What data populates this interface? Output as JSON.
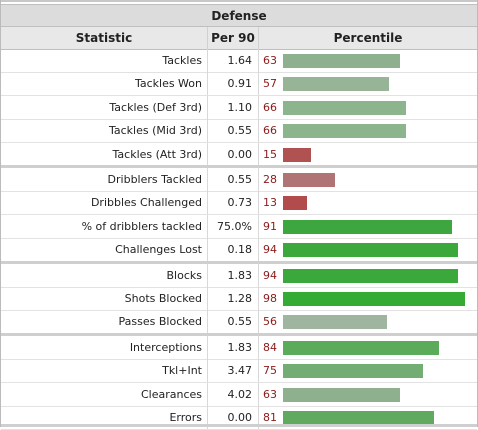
{
  "table": {
    "title": "Defense",
    "headers": {
      "statistic": "Statistic",
      "per90": "Per 90",
      "percentile": "Percentile"
    },
    "groups": [
      [
        {
          "label": "Tackles",
          "per90": "1.64",
          "percentile": "63",
          "pct_value": 63,
          "color": "#8fb08f"
        },
        {
          "label": "Tackles Won",
          "per90": "0.91",
          "percentile": "57",
          "pct_value": 57,
          "color": "#97b497"
        },
        {
          "label": "Tackles (Def 3rd)",
          "per90": "1.10",
          "percentile": "66",
          "pct_value": 66,
          "color": "#8db58d"
        },
        {
          "label": "Tackles (Mid 3rd)",
          "per90": "0.55",
          "percentile": "66",
          "pct_value": 66,
          "color": "#8db58d"
        },
        {
          "label": "Tackles (Att 3rd)",
          "per90": "0.00",
          "percentile": "15",
          "pct_value": 15,
          "color": "#b05252"
        }
      ],
      [
        {
          "label": "Dribblers Tackled",
          "per90": "0.55",
          "percentile": "28",
          "pct_value": 28,
          "color": "#b07474"
        },
        {
          "label": "Dribbles Challenged",
          "per90": "0.73",
          "percentile": "13",
          "pct_value": 13,
          "color": "#b24b4b"
        },
        {
          "label": "% of dribblers tackled",
          "per90": "75.0%",
          "percentile": "91",
          "pct_value": 91,
          "color": "#3ea63e"
        },
        {
          "label": "Challenges Lost",
          "per90": "0.18",
          "percentile": "94",
          "pct_value": 94,
          "color": "#3aa83a"
        }
      ],
      [
        {
          "label": "Blocks",
          "per90": "1.83",
          "percentile": "94",
          "pct_value": 94,
          "color": "#3aa83a"
        },
        {
          "label": "Shots Blocked",
          "per90": "1.28",
          "percentile": "98",
          "pct_value": 98,
          "color": "#35ab35"
        },
        {
          "label": "Passes Blocked",
          "per90": "0.55",
          "percentile": "56",
          "pct_value": 56,
          "color": "#a0b5a0"
        }
      ],
      [
        {
          "label": "Interceptions",
          "per90": "1.83",
          "percentile": "84",
          "pct_value": 84,
          "color": "#5bab5b"
        },
        {
          "label": "Tkl+Int",
          "per90": "3.47",
          "percentile": "75",
          "pct_value": 75,
          "color": "#73ad73"
        },
        {
          "label": "Clearances",
          "per90": "4.02",
          "percentile": "63",
          "pct_value": 63,
          "color": "#8fb08f"
        },
        {
          "label": "Errors",
          "per90": "0.00",
          "percentile": "81",
          "pct_value": 81,
          "color": "#60aa60"
        }
      ]
    ]
  }
}
